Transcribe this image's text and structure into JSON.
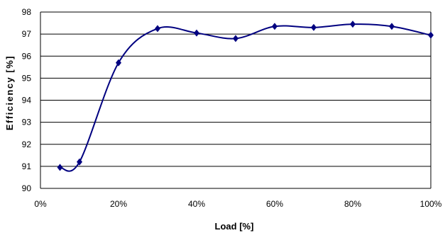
{
  "chart_data": {
    "type": "line",
    "title": "",
    "xlabel": "Load [%]",
    "ylabel": "Efficiency [%]",
    "xlim": [
      0,
      100
    ],
    "ylim": [
      90,
      98
    ],
    "x_ticks": [
      "0%",
      "20%",
      "40%",
      "60%",
      "80%",
      "100%"
    ],
    "y_ticks": [
      "90",
      "91",
      "92",
      "93",
      "94",
      "95",
      "96",
      "97",
      "98"
    ],
    "grid": "horizontal",
    "smooth": true,
    "marker": "diamond",
    "line_color": "#000080",
    "series": [
      {
        "x": [
          5,
          10,
          20,
          30,
          40,
          50,
          60,
          70,
          80,
          90,
          100
        ],
        "values": [
          90.95,
          91.2,
          95.7,
          97.25,
          97.05,
          96.8,
          97.35,
          97.3,
          97.45,
          97.35,
          96.95
        ]
      }
    ]
  }
}
